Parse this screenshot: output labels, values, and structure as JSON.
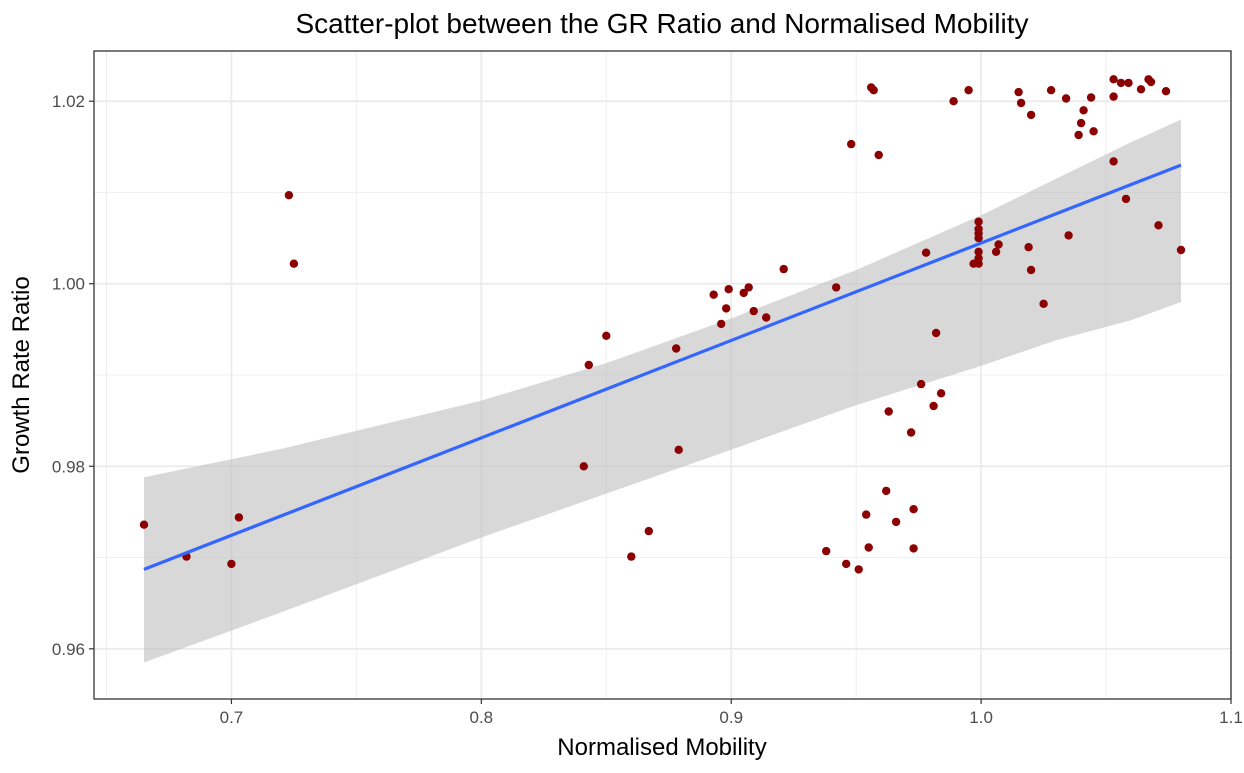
{
  "chart_data": {
    "type": "scatter",
    "title": "Scatter-plot between the GR Ratio and Normalised Mobility",
    "xlabel": "Normalised Mobility",
    "ylabel": "Growth Rate Ratio",
    "xlim": [
      0.645,
      1.1
    ],
    "ylim": [
      0.9545,
      1.0255
    ],
    "x_major_ticks": [
      0.7,
      0.8,
      0.9,
      1.0,
      1.1
    ],
    "x_tick_labels": [
      "0.7",
      "0.8",
      "0.9",
      "1.0",
      "1.1"
    ],
    "y_major_ticks": [
      0.96,
      0.98,
      1.0,
      1.02
    ],
    "y_tick_labels": [
      "0.96",
      "0.98",
      "1.00",
      "1.02"
    ],
    "x_minor_ticks": [
      0.65,
      0.75,
      0.85,
      0.95,
      1.05
    ],
    "y_minor_ticks": [
      0.97,
      0.99,
      1.01
    ],
    "grid": true,
    "colors": {
      "points": "#8b0000",
      "fit_line": "#3366ff",
      "confidence_band": "#bebebe",
      "grid": "#ebebeb",
      "panel_border": "#333333"
    },
    "points": [
      {
        "x": 0.665,
        "y": 0.9736
      },
      {
        "x": 0.682,
        "y": 0.9701
      },
      {
        "x": 0.7,
        "y": 0.9693
      },
      {
        "x": 0.703,
        "y": 0.9744
      },
      {
        "x": 0.723,
        "y": 1.0097
      },
      {
        "x": 0.725,
        "y": 1.0022
      },
      {
        "x": 0.841,
        "y": 0.98
      },
      {
        "x": 0.843,
        "y": 0.9911
      },
      {
        "x": 0.85,
        "y": 0.9943
      },
      {
        "x": 0.86,
        "y": 0.9701
      },
      {
        "x": 0.867,
        "y": 0.9729
      },
      {
        "x": 0.878,
        "y": 0.9929
      },
      {
        "x": 0.879,
        "y": 0.9818
      },
      {
        "x": 0.893,
        "y": 0.9988
      },
      {
        "x": 0.896,
        "y": 0.9956
      },
      {
        "x": 0.898,
        "y": 0.9973
      },
      {
        "x": 0.899,
        "y": 0.9994
      },
      {
        "x": 0.905,
        "y": 0.999
      },
      {
        "x": 0.907,
        "y": 0.9996
      },
      {
        "x": 0.909,
        "y": 0.997
      },
      {
        "x": 0.914,
        "y": 0.9963
      },
      {
        "x": 0.921,
        "y": 1.0016
      },
      {
        "x": 0.938,
        "y": 0.9707
      },
      {
        "x": 0.942,
        "y": 0.9996
      },
      {
        "x": 0.946,
        "y": 0.9693
      },
      {
        "x": 0.948,
        "y": 1.0153
      },
      {
        "x": 0.951,
        "y": 0.9687
      },
      {
        "x": 0.954,
        "y": 0.9747
      },
      {
        "x": 0.955,
        "y": 0.9711
      },
      {
        "x": 0.956,
        "y": 1.0215
      },
      {
        "x": 0.957,
        "y": 1.0212
      },
      {
        "x": 0.959,
        "y": 1.0141
      },
      {
        "x": 0.962,
        "y": 0.9773
      },
      {
        "x": 0.963,
        "y": 0.986
      },
      {
        "x": 0.966,
        "y": 0.9739
      },
      {
        "x": 0.972,
        "y": 0.9837
      },
      {
        "x": 0.973,
        "y": 0.9753
      },
      {
        "x": 0.973,
        "y": 0.971
      },
      {
        "x": 0.976,
        "y": 0.989
      },
      {
        "x": 0.978,
        "y": 1.0034
      },
      {
        "x": 0.981,
        "y": 0.9866
      },
      {
        "x": 0.982,
        "y": 0.9946
      },
      {
        "x": 0.984,
        "y": 0.988
      },
      {
        "x": 0.989,
        "y": 1.02
      },
      {
        "x": 0.995,
        "y": 1.0212
      },
      {
        "x": 0.997,
        "y": 1.0022
      },
      {
        "x": 0.999,
        "y": 1.0068
      },
      {
        "x": 0.999,
        "y": 1.006
      },
      {
        "x": 0.999,
        "y": 1.0055
      },
      {
        "x": 0.999,
        "y": 1.005
      },
      {
        "x": 0.999,
        "y": 1.0035
      },
      {
        "x": 0.999,
        "y": 1.0028
      },
      {
        "x": 0.999,
        "y": 1.0022
      },
      {
        "x": 1.006,
        "y": 1.0035
      },
      {
        "x": 1.007,
        "y": 1.0043
      },
      {
        "x": 1.015,
        "y": 1.021
      },
      {
        "x": 1.016,
        "y": 1.0198
      },
      {
        "x": 1.019,
        "y": 1.004
      },
      {
        "x": 1.02,
        "y": 1.0185
      },
      {
        "x": 1.02,
        "y": 1.0015
      },
      {
        "x": 1.025,
        "y": 0.9978
      },
      {
        "x": 1.028,
        "y": 1.0212
      },
      {
        "x": 1.034,
        "y": 1.0203
      },
      {
        "x": 1.035,
        "y": 1.0053
      },
      {
        "x": 1.039,
        "y": 1.0163
      },
      {
        "x": 1.04,
        "y": 1.0176
      },
      {
        "x": 1.041,
        "y": 1.019
      },
      {
        "x": 1.044,
        "y": 1.0204
      },
      {
        "x": 1.045,
        "y": 1.0167
      },
      {
        "x": 1.053,
        "y": 1.0224
      },
      {
        "x": 1.053,
        "y": 1.0205
      },
      {
        "x": 1.053,
        "y": 1.0134
      },
      {
        "x": 1.056,
        "y": 1.022
      },
      {
        "x": 1.058,
        "y": 1.0093
      },
      {
        "x": 1.059,
        "y": 1.022
      },
      {
        "x": 1.064,
        "y": 1.0213
      },
      {
        "x": 1.067,
        "y": 1.0224
      },
      {
        "x": 1.068,
        "y": 1.0221
      },
      {
        "x": 1.071,
        "y": 1.0064
      },
      {
        "x": 1.074,
        "y": 1.0211
      },
      {
        "x": 1.08,
        "y": 1.0037
      }
    ],
    "fit": {
      "method": "linear",
      "line": {
        "x": [
          0.665,
          1.08
        ],
        "y": [
          0.9687,
          1.013
        ]
      },
      "confidence_band": {
        "x": [
          0.665,
          0.72,
          0.8,
          0.85,
          0.9,
          0.95,
          1.0,
          1.03,
          1.06,
          1.08
        ],
        "upper": [
          0.9788,
          0.9819,
          0.9872,
          0.9913,
          0.9962,
          1.0015,
          1.0075,
          1.0115,
          1.0155,
          1.018
        ],
        "lower": [
          0.9585,
          0.964,
          0.9722,
          0.977,
          0.9818,
          0.9867,
          0.991,
          0.9938,
          0.996,
          0.998
        ]
      }
    }
  }
}
